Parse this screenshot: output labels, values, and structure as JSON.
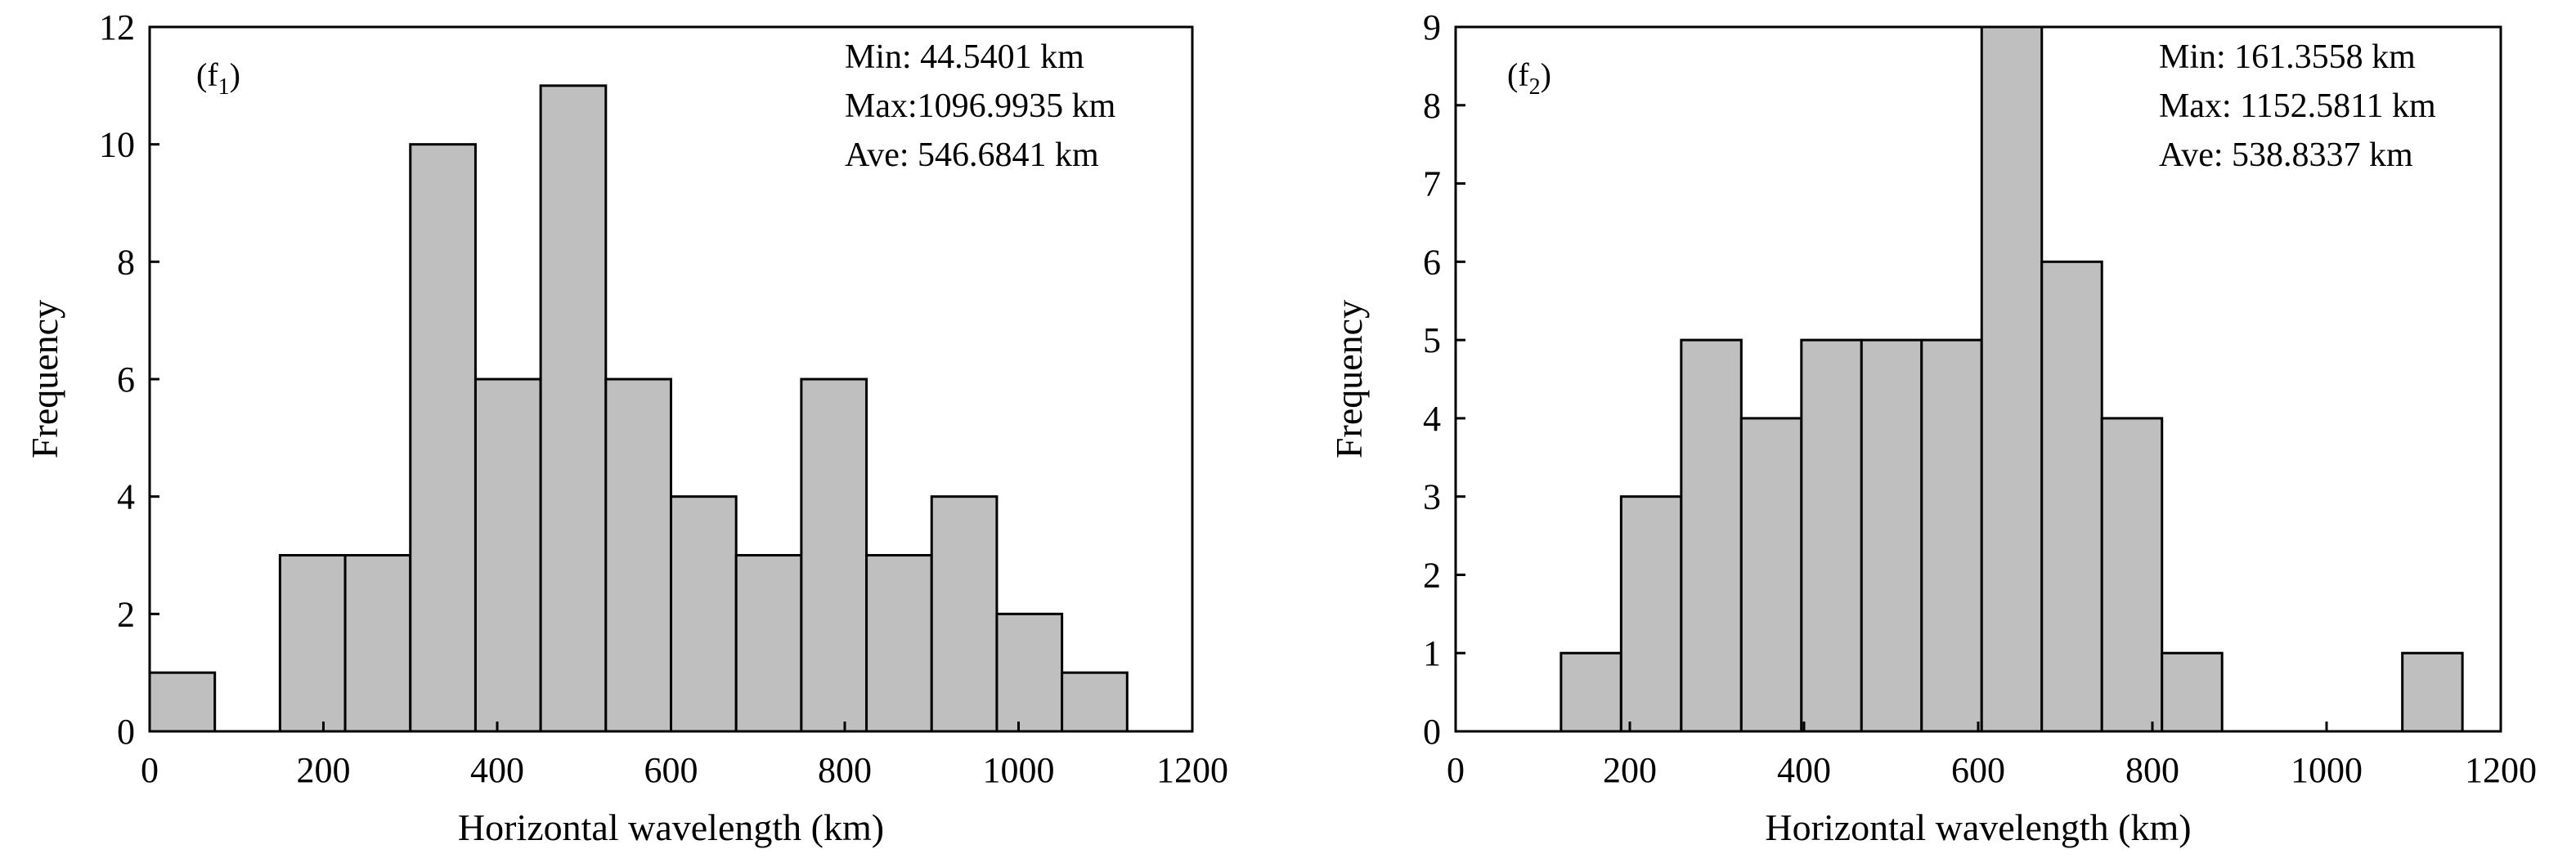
{
  "chart_data": [
    {
      "type": "bar",
      "panel_label": "(f",
      "panel_sub": "1",
      "panel_close": ")",
      "xlabel": "Horizontal wavelength (km)",
      "ylabel": "Frequency",
      "xlim": [
        0,
        1200
      ],
      "ylim": [
        0,
        12
      ],
      "xticks": [
        0,
        200,
        400,
        600,
        800,
        1000,
        1200
      ],
      "yticks": [
        0,
        2,
        4,
        6,
        8,
        10,
        12
      ],
      "bins": [
        {
          "start": 0,
          "end": 75,
          "value": 1
        },
        {
          "start": 75,
          "end": 150,
          "value": 0
        },
        {
          "start": 150,
          "end": 225,
          "value": 3
        },
        {
          "start": 225,
          "end": 300,
          "value": 3
        },
        {
          "start": 300,
          "end": 375,
          "value": 10
        },
        {
          "start": 375,
          "end": 450,
          "value": 6
        },
        {
          "start": 450,
          "end": 525,
          "value": 11
        },
        {
          "start": 525,
          "end": 600,
          "value": 6
        },
        {
          "start": 600,
          "end": 675,
          "value": 4
        },
        {
          "start": 675,
          "end": 750,
          "value": 3
        },
        {
          "start": 750,
          "end": 825,
          "value": 6
        },
        {
          "start": 825,
          "end": 900,
          "value": 3
        },
        {
          "start": 900,
          "end": 975,
          "value": 4
        },
        {
          "start": 975,
          "end": 1050,
          "value": 2
        },
        {
          "start": 1050,
          "end": 1125,
          "value": 1
        }
      ],
      "stats": [
        "Min: 44.5401 km",
        "Max:1096.9935 km",
        "Ave: 546.6841 km"
      ],
      "bar_color": "#bfbfbf"
    },
    {
      "type": "bar",
      "panel_label": "(f",
      "panel_sub": "2",
      "panel_close": ")",
      "xlabel": "Horizontal wavelength (km)",
      "ylabel": "Frequency",
      "xlim": [
        0,
        1200
      ],
      "ylim": [
        0,
        9
      ],
      "xticks": [
        0,
        200,
        400,
        600,
        800,
        1000,
        1200
      ],
      "yticks": [
        0,
        1,
        2,
        3,
        4,
        5,
        6,
        7,
        8,
        9
      ],
      "bins": [
        {
          "start": 121,
          "end": 190,
          "value": 1
        },
        {
          "start": 190,
          "end": 259,
          "value": 3
        },
        {
          "start": 259,
          "end": 328,
          "value": 5
        },
        {
          "start": 328,
          "end": 397,
          "value": 4
        },
        {
          "start": 397,
          "end": 466,
          "value": 5
        },
        {
          "start": 466,
          "end": 535,
          "value": 5
        },
        {
          "start": 535,
          "end": 604,
          "value": 5
        },
        {
          "start": 604,
          "end": 673,
          "value": 9
        },
        {
          "start": 673,
          "end": 742,
          "value": 6
        },
        {
          "start": 742,
          "end": 811,
          "value": 4
        },
        {
          "start": 811,
          "end": 880,
          "value": 1
        },
        {
          "start": 880,
          "end": 949,
          "value": 0
        },
        {
          "start": 949,
          "end": 1018,
          "value": 0
        },
        {
          "start": 1018,
          "end": 1087,
          "value": 0
        },
        {
          "start": 1087,
          "end": 1156,
          "value": 1
        }
      ],
      "stats": [
        "Min: 161.3558 km",
        "Max: 1152.5811 km",
        "Ave: 538.8337 km"
      ],
      "bar_color": "#bfbfbf"
    }
  ]
}
